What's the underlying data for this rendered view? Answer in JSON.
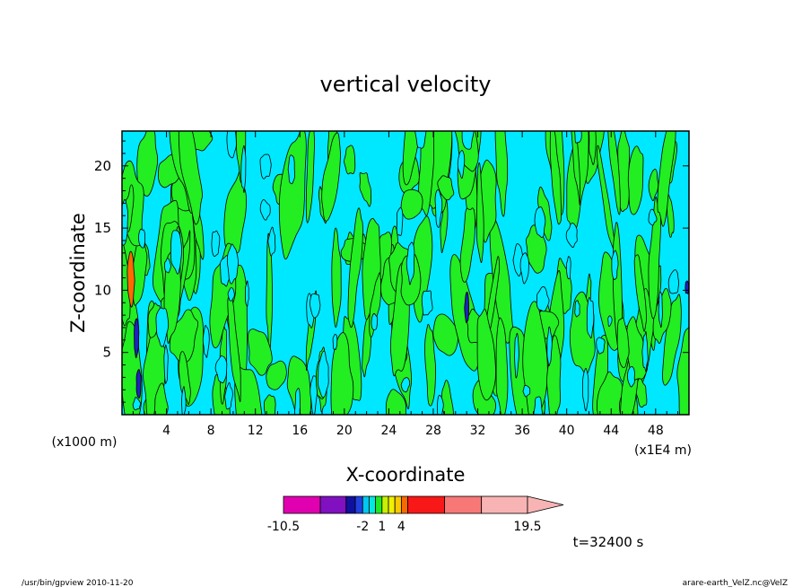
{
  "chart_data": {
    "type": "heatmap",
    "title": "vertical velocity",
    "xlabel": "X-coordinate",
    "ylabel": "Z-coordinate",
    "x_unit_left": "(x1000 m)",
    "x_unit_right": "(x1E4 m)",
    "x_ticks": [
      "4",
      "8",
      "12",
      "16",
      "20",
      "24",
      "28",
      "32",
      "36",
      "40",
      "44",
      "48"
    ],
    "y_ticks": [
      "5",
      "10",
      "15",
      "20"
    ],
    "xlim": [
      0,
      51
    ],
    "ylim": [
      0,
      22.8
    ],
    "colorbar": {
      "labels": [
        "-10.5",
        "-2",
        "1",
        "4",
        "19.5"
      ],
      "levels": [
        -10.5,
        -7.5,
        -4.5,
        -3,
        -2,
        -1,
        0,
        1,
        2,
        3,
        4,
        7.5,
        11.5,
        15.5,
        19.5
      ],
      "colors": [
        "#e000b0",
        "#8010c0",
        "#1010a0",
        "#2040e0",
        "#00c8f0",
        "#00e8e0",
        "#20e820",
        "#c8f000",
        "#f0f000",
        "#f8c800",
        "#f86a00",
        "#f81818",
        "#f87878",
        "#f8b4b4"
      ]
    },
    "field_colors": {
      "negative_small": "#00e8ff",
      "positive_small": "#22ee22",
      "strong_up": "#ff6a00",
      "strong_down": "#2020c0"
    },
    "time_label": "t=32400 s"
  },
  "footer": {
    "left": "/usr/bin/gpview   2010-11-20",
    "right": "arare-earth_VelZ.nc@VelZ"
  }
}
